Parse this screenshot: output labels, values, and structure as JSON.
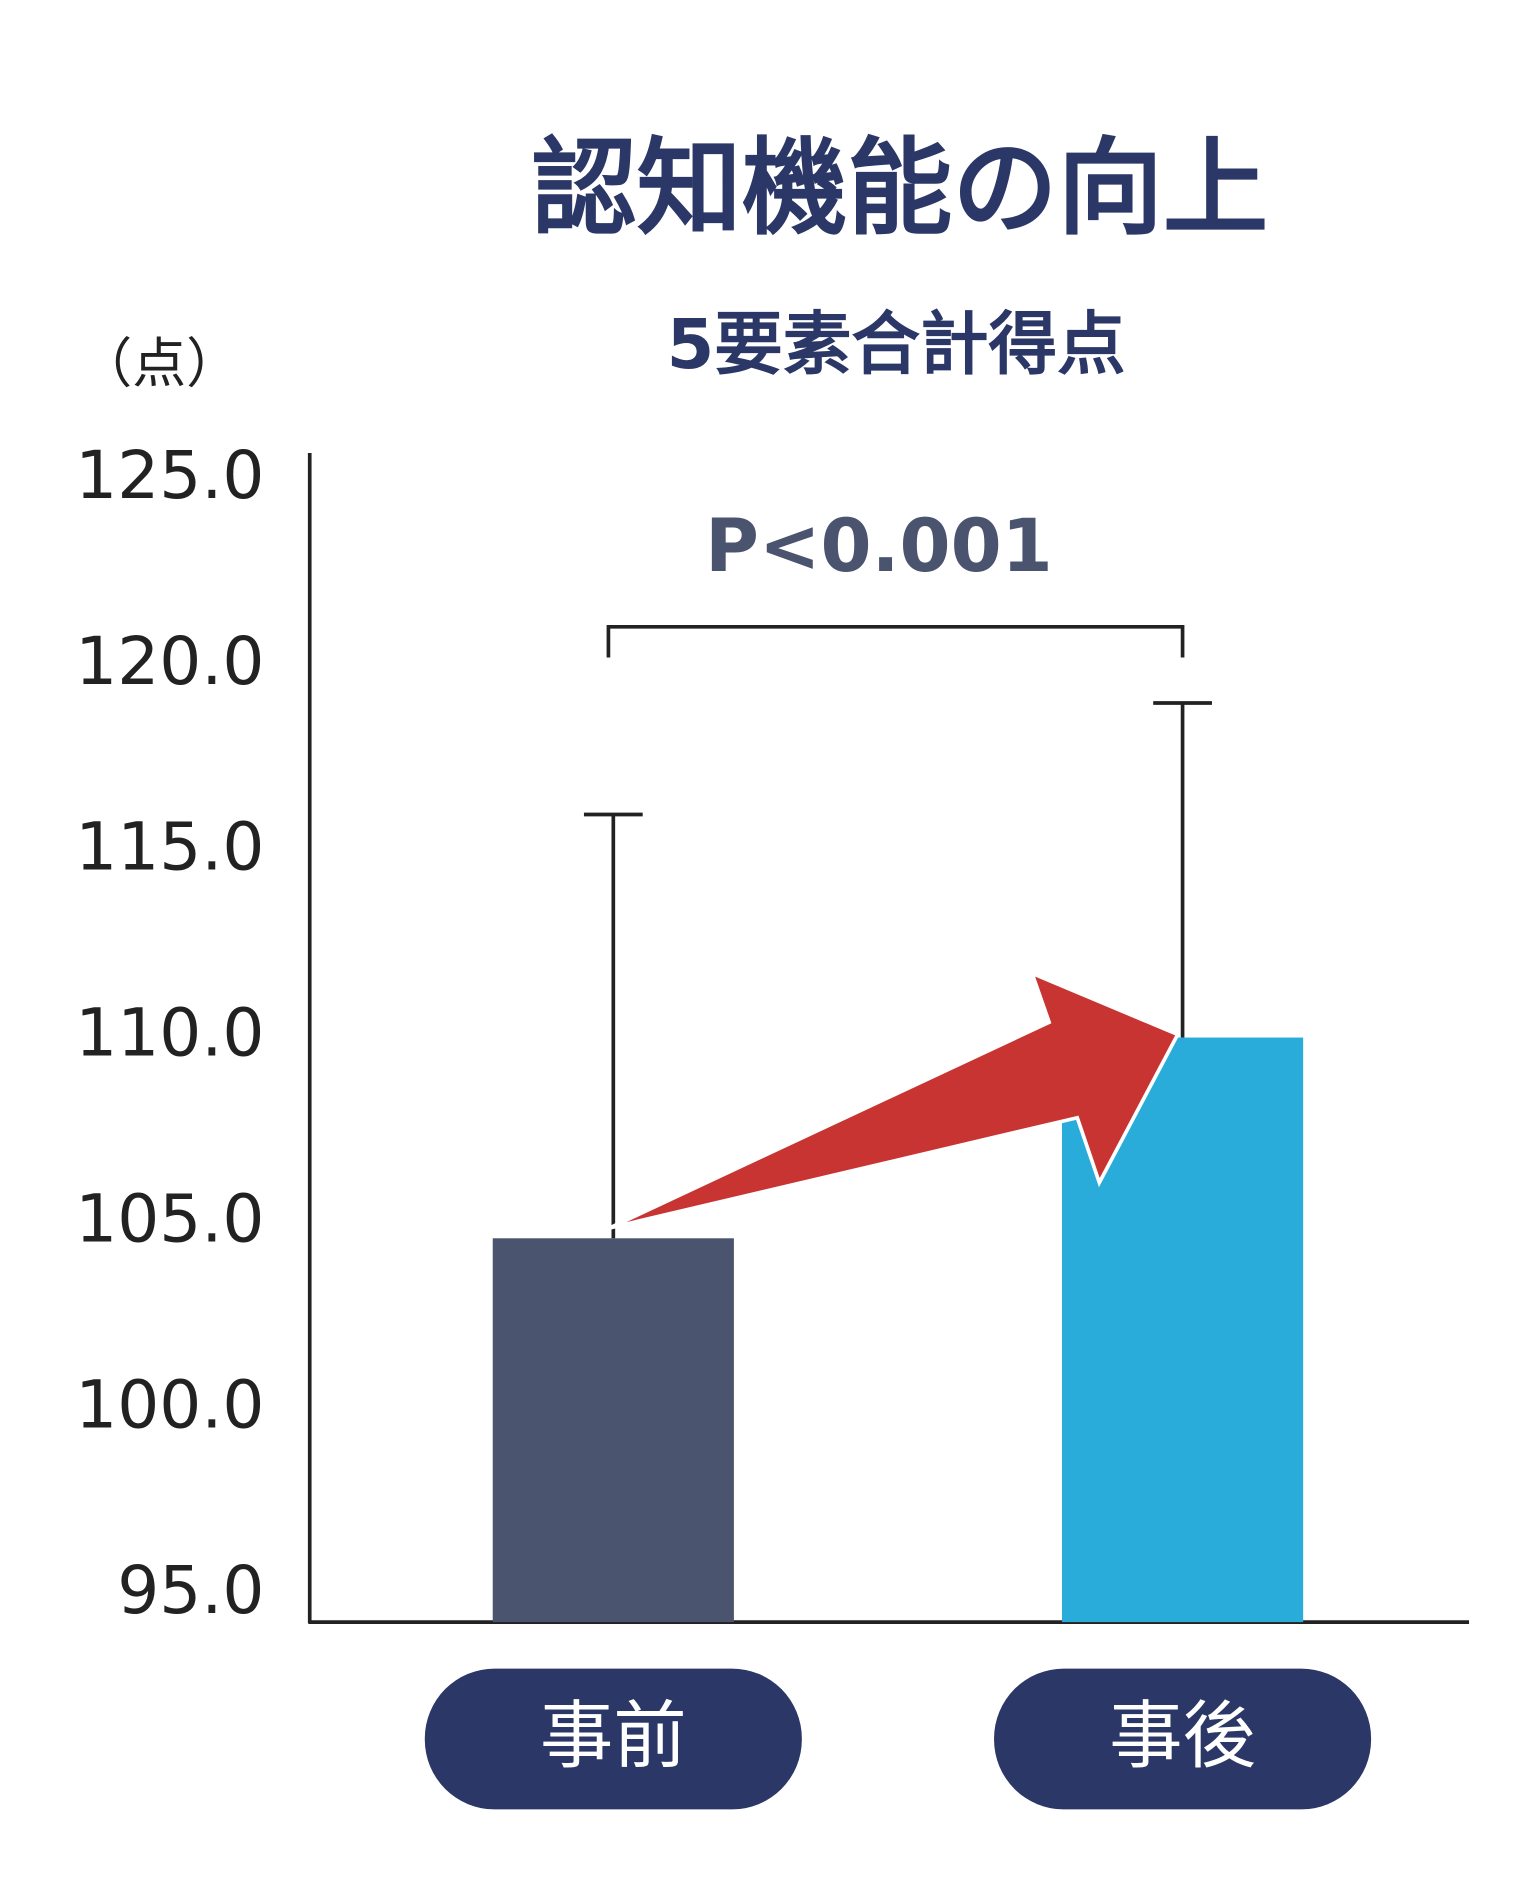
{
  "chart_data": {
    "type": "bar",
    "title": "認知機能の向上",
    "subtitle": "5要素合計得点",
    "y_unit": "（点）",
    "annotation": "P<0.001",
    "categories": [
      "事前",
      "事後"
    ],
    "values": [
      104.6,
      110.0
    ],
    "errors": [
      11.4,
      9.0
    ],
    "colors": [
      "#4a546f",
      "#29acd9"
    ],
    "ylim": [
      95,
      125
    ],
    "yticks": [
      {
        "value": 95,
        "label": "95.0"
      },
      {
        "value": 100,
        "label": "100.0"
      },
      {
        "value": 105,
        "label": "105.0"
      },
      {
        "value": 110,
        "label": "110.0"
      },
      {
        "value": 115,
        "label": "115.0"
      },
      {
        "value": 120,
        "label": "120.0"
      },
      {
        "value": 125,
        "label": "125.0"
      }
    ]
  }
}
